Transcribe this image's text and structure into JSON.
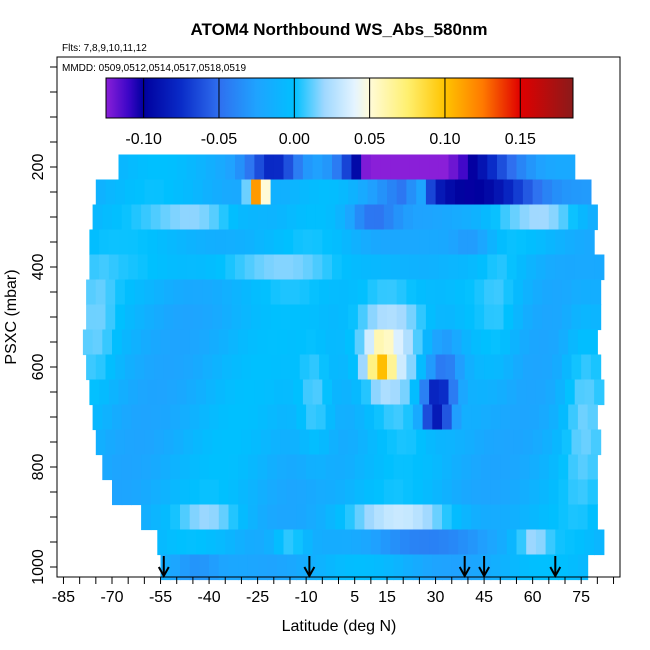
{
  "chart_data": {
    "type": "heatmap",
    "title": "ATOM4 Northbound WS_Abs_580nm",
    "subtitle_flights": "Flts: 7,8,9,10,11,12",
    "subtitle_dates": "MMDD: 0509,0512,0514,0517,0518,0519",
    "xlabel": "Latitude (deg N)",
    "ylabel": "PSXC (mbar)",
    "x_ticks": [
      "-85",
      "-70",
      "-55",
      "-40",
      "-25",
      "-10",
      "5",
      "15",
      "30",
      "45",
      "60",
      "75"
    ],
    "y_ticks": [
      "200",
      "400",
      "600",
      "800",
      "1000"
    ],
    "colorbar_ticks": [
      "-0.10",
      "-0.05",
      "0.00",
      "0.05",
      "0.10",
      "0.15"
    ],
    "colorbar_range": [
      -0.125,
      0.185
    ],
    "colorbar_stops": [
      {
        "v": -0.125,
        "c": "#8a1fd8"
      },
      {
        "v": -0.11,
        "c": "#3b06c7"
      },
      {
        "v": -0.1,
        "c": "#00009e"
      },
      {
        "v": -0.075,
        "c": "#0a2cc8"
      },
      {
        "v": -0.05,
        "c": "#2f6fef"
      },
      {
        "v": -0.025,
        "c": "#1fa3ff"
      },
      {
        "v": 0.0,
        "c": "#00c0ff"
      },
      {
        "v": 0.02,
        "c": "#9fd8ff"
      },
      {
        "v": 0.04,
        "c": "#e4f4ff"
      },
      {
        "v": 0.05,
        "c": "#fffbd8"
      },
      {
        "v": 0.075,
        "c": "#fff070"
      },
      {
        "v": 0.1,
        "c": "#ffc400"
      },
      {
        "v": 0.125,
        "c": "#ff7a00"
      },
      {
        "v": 0.15,
        "c": "#e00000"
      },
      {
        "v": 0.185,
        "c": "#8b1a1a"
      }
    ],
    "xlim": [
      -87,
      87
    ],
    "ylim": [
      1020,
      -20
    ],
    "arrow_latitudes": [
      -54,
      -9,
      39,
      45,
      67
    ],
    "lat_bands": [
      {
        "p": 200,
        "lat": [
          -68,
          71
        ]
      },
      {
        "p": 250,
        "lat": [
          -75,
          76
        ]
      },
      {
        "p": 300,
        "lat": [
          -76,
          79
        ]
      },
      {
        "p": 350,
        "lat": [
          -77,
          79
        ]
      },
      {
        "p": 400,
        "lat": [
          -77,
          80
        ]
      },
      {
        "p": 450,
        "lat": [
          -78,
          80
        ]
      },
      {
        "p": 500,
        "lat": [
          -78,
          80
        ]
      },
      {
        "p": 550,
        "lat": [
          -79,
          80
        ]
      },
      {
        "p": 600,
        "lat": [
          -78,
          80
        ]
      },
      {
        "p": 650,
        "lat": [
          -77,
          80
        ]
      },
      {
        "p": 700,
        "lat": [
          -76,
          80
        ]
      },
      {
        "p": 750,
        "lat": [
          -75,
          80
        ]
      },
      {
        "p": 800,
        "lat": [
          -73,
          80
        ]
      },
      {
        "p": 850,
        "lat": [
          -70,
          80
        ]
      },
      {
        "p": 900,
        "lat": [
          -61,
          80
        ]
      },
      {
        "p": 950,
        "lat": [
          -56,
          80
        ]
      },
      {
        "p": 1000,
        "lat": [
          -55,
          75
        ]
      }
    ],
    "features": [
      {
        "lat": 30,
        "p": 200,
        "dlat": 27,
        "dp": 25,
        "v": -0.1
      },
      {
        "lat": 45,
        "p": 250,
        "dlat": 22,
        "dp": 25,
        "v": -0.09
      },
      {
        "lat": 12,
        "p": 200,
        "dlat": 10,
        "dp": 25,
        "v": -0.075
      },
      {
        "lat": -20,
        "p": 200,
        "dlat": 8,
        "dp": 25,
        "v": -0.055
      },
      {
        "lat": -25,
        "p": 250,
        "dlat": 3,
        "dp": 25,
        "v": 0.14
      },
      {
        "lat": 25,
        "p": 250,
        "dlat": 3,
        "dp": 20,
        "v": 0.045
      },
      {
        "lat": -42,
        "p": 300,
        "dlat": 14,
        "dp": 35,
        "v": 0.035
      },
      {
        "lat": -30,
        "p": 400,
        "dlat": 25,
        "dp": 40,
        "v": 0.025
      },
      {
        "lat": 10,
        "p": 300,
        "dlat": 8,
        "dp": 40,
        "v": -0.035
      },
      {
        "lat": 15,
        "p": 550,
        "dlat": 12,
        "dp": 130,
        "v": 0.055
      },
      {
        "lat": 13,
        "p": 590,
        "dlat": 4,
        "dp": 40,
        "v": 0.08
      },
      {
        "lat": 30,
        "p": 680,
        "dlat": 5,
        "dp": 40,
        "v": -0.1
      },
      {
        "lat": 32,
        "p": 600,
        "dlat": 7,
        "dp": 80,
        "v": -0.05
      },
      {
        "lat": 42,
        "p": 350,
        "dlat": 8,
        "dp": 40,
        "v": -0.025
      },
      {
        "lat": -7,
        "p": 680,
        "dlat": 6,
        "dp": 120,
        "v": 0.03
      },
      {
        "lat": 22,
        "p": 900,
        "dlat": 18,
        "dp": 30,
        "v": 0.035
      },
      {
        "lat": -40,
        "p": 900,
        "dlat": 10,
        "dp": 30,
        "v": 0.02
      },
      {
        "lat": 20,
        "p": 960,
        "dlat": 18,
        "dp": 25,
        "v": -0.04
      },
      {
        "lat": -45,
        "p": 1000,
        "dlat": 10,
        "dp": 25,
        "v": -0.03
      },
      {
        "lat": -15,
        "p": 950,
        "dlat": 6,
        "dp": 25,
        "v": 0.03
      },
      {
        "lat": 60,
        "p": 950,
        "dlat": 5,
        "dp": 25,
        "v": 0.025
      },
      {
        "lat": 65,
        "p": 300,
        "dlat": 12,
        "dp": 40,
        "v": 0.03
      },
      {
        "lat": -75,
        "p": 500,
        "dlat": 6,
        "dp": 150,
        "v": 0.015
      },
      {
        "lat": 75,
        "p": 650,
        "dlat": 6,
        "dp": 200,
        "v": 0.02
      },
      {
        "lat": 50,
        "p": 500,
        "dlat": 6,
        "dp": 150,
        "v": 0.012
      }
    ]
  }
}
